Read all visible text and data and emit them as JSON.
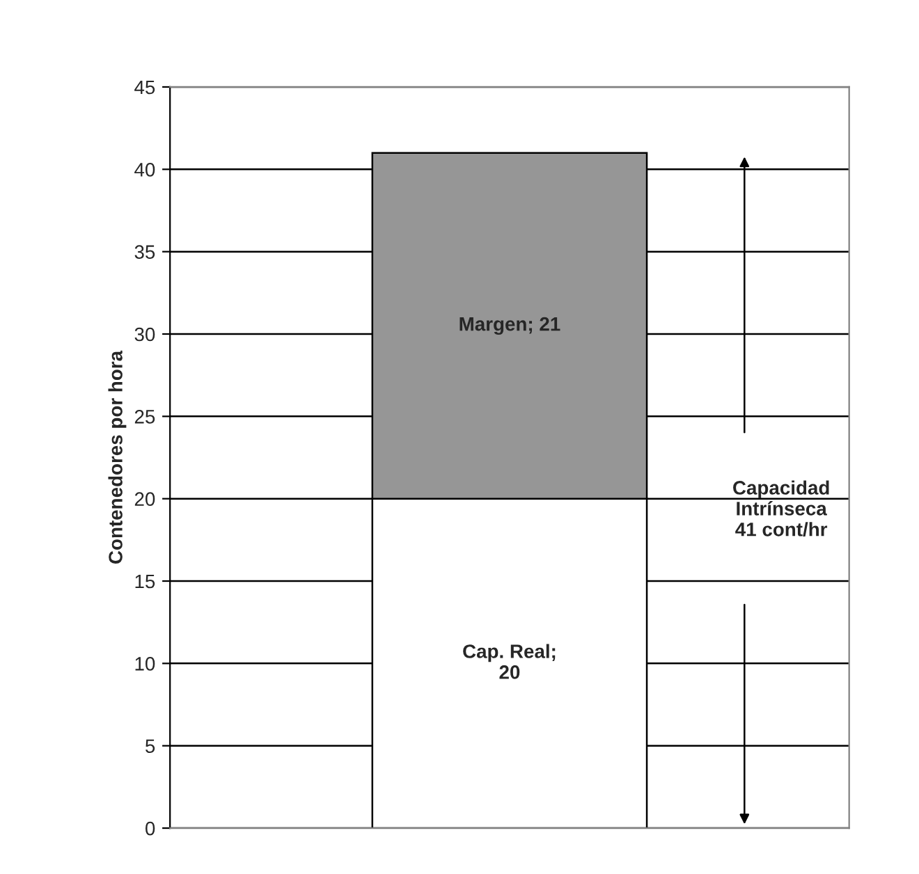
{
  "chart_data": {
    "type": "bar",
    "stacked": true,
    "categories": [
      null
    ],
    "ylabel": "Contenedores por hora",
    "series": [
      {
        "color": "#ffffff",
        "values": [
          20
        ],
        "value_labels": [
          "Cap. Real;\n20"
        ]
      },
      {
        "color": "#969696",
        "values": [
          21
        ],
        "value_labels": [
          "Margen; 21"
        ]
      }
    ],
    "ylim": [
      0,
      45
    ],
    "yticks": [
      0,
      5,
      10,
      15,
      20,
      25,
      30,
      35,
      40,
      45
    ],
    "grid": "y",
    "tick_labels": "y",
    "annotations": [
      "Capacidad\nIntrínseca\n41 cont/hr"
    ]
  }
}
